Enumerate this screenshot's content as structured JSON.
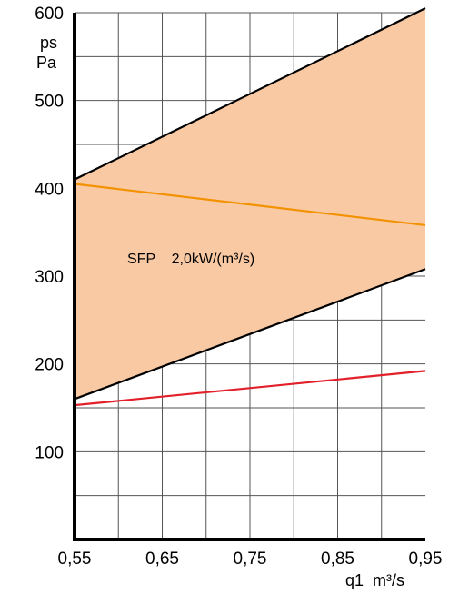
{
  "chart_data": {
    "type": "line",
    "ylabel_line1": "ps",
    "ylabel_line2": "Pa",
    "xlabel": "q1  m³/s",
    "annotation": "SFP    2,0kW/(m³/s)",
    "x_ticks": [
      "0,55",
      "0,65",
      "0,75",
      "0,85",
      "0,95"
    ],
    "y_ticks": [
      "100",
      "200",
      "300",
      "400",
      "500",
      "600"
    ],
    "xlim": [
      0.55,
      0.95
    ],
    "ylim": [
      0,
      600
    ],
    "grid": true,
    "shaded_region": {
      "color": "#f9c9a4",
      "upper": {
        "x": [
          0.55,
          0.95
        ],
        "y": [
          410,
          605
        ]
      },
      "lower": {
        "x": [
          0.55,
          0.95
        ],
        "y": [
          160,
          308
        ]
      }
    },
    "series": [
      {
        "x": [
          0.55,
          0.95
        ],
        "y": [
          410,
          605
        ],
        "color": "#000000"
      },
      {
        "x": [
          0.55,
          0.95
        ],
        "y": [
          160,
          308
        ],
        "color": "#000000"
      },
      {
        "x": [
          0.55,
          0.95
        ],
        "y": [
          405,
          358
        ],
        "color": "#f39200"
      },
      {
        "x": [
          0.55,
          0.95
        ],
        "y": [
          153,
          192
        ],
        "color": "#e3202a"
      }
    ]
  }
}
